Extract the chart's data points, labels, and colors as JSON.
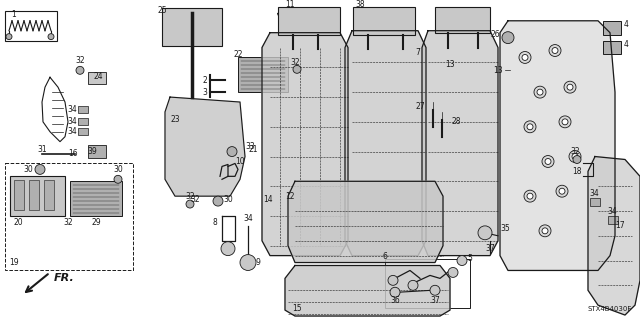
{
  "background_color": "#ffffff",
  "line_color": "#1a1a1a",
  "diagram_code": "STX4B4030F",
  "fig_width": 6.4,
  "fig_height": 3.19,
  "dpi": 100
}
